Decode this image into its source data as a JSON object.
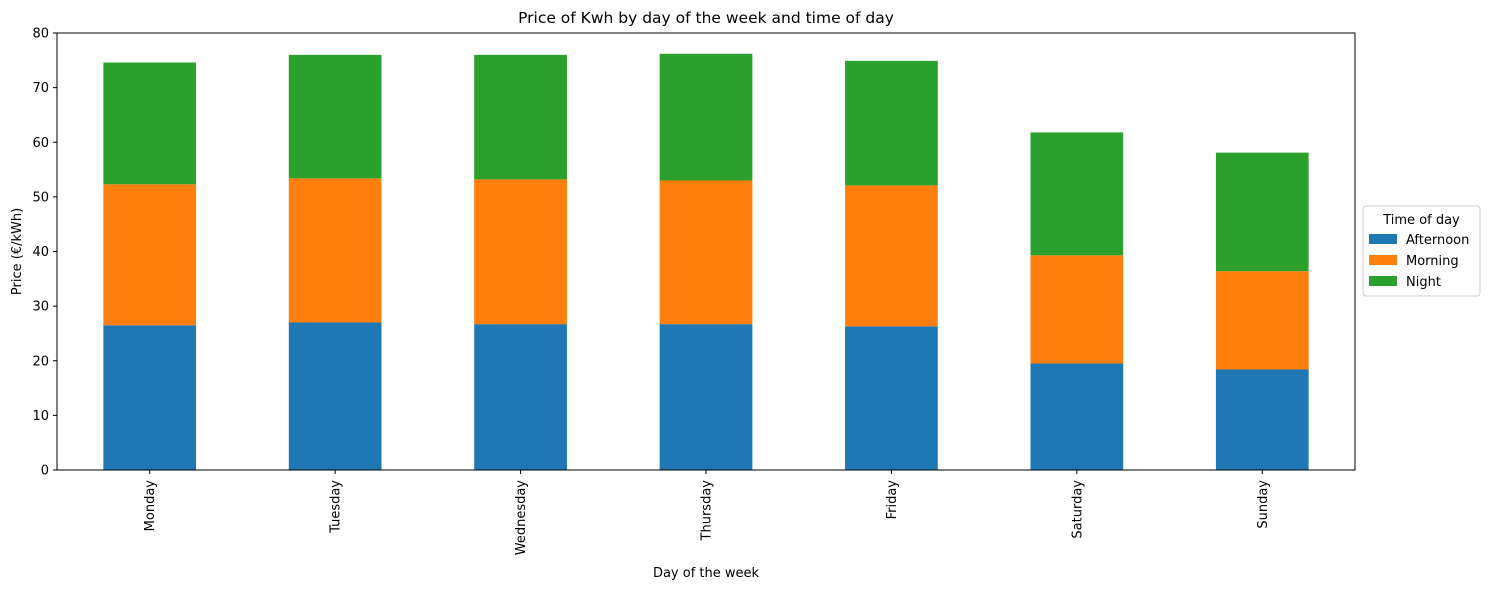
{
  "chart_data": {
    "type": "bar",
    "stacked": true,
    "title": "Price of Kwh by day of the week and time of day",
    "xlabel": "Day of the week",
    "ylabel": "Price (€/kWh)",
    "ylim": [
      0,
      80
    ],
    "yticks": [
      0,
      10,
      20,
      30,
      40,
      50,
      60,
      70,
      80
    ],
    "categories": [
      "Monday",
      "Tuesday",
      "Wednesday",
      "Thursday",
      "Friday",
      "Saturday",
      "Sunday"
    ],
    "series": [
      {
        "name": "Afternoon",
        "color": "#1f77b4",
        "values": [
          26.5,
          27.0,
          26.7,
          26.7,
          26.3,
          19.5,
          18.4
        ]
      },
      {
        "name": "Morning",
        "color": "#ff7f0e",
        "values": [
          25.8,
          26.4,
          26.5,
          26.3,
          25.8,
          19.8,
          18.0
        ]
      },
      {
        "name": "Night",
        "color": "#2ca02c",
        "values": [
          22.3,
          22.6,
          22.8,
          23.2,
          22.8,
          22.5,
          21.7
        ]
      }
    ],
    "legend": {
      "title": "Time of day",
      "position": "right-center"
    },
    "grid": false
  }
}
